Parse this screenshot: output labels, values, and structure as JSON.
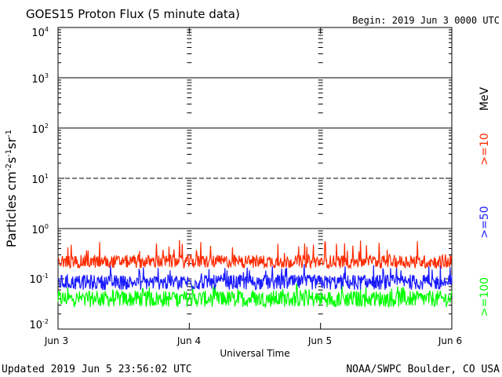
{
  "header": {
    "title": "GOES15 Proton Flux (5 minute data)",
    "begin": "Begin: 2019 Jun 3 0000 UTC"
  },
  "footer": {
    "updated": "Updated 2019 Jun  5 23:56:02 UTC",
    "source": "NOAA/SWPC Boulder, CO USA"
  },
  "colors": {
    "ge10": "#ff2a00",
    "ge50": "#1a1aff",
    "ge100": "#00ff00",
    "axis": "#000000"
  },
  "chart_data": {
    "type": "line",
    "title": "GOES15 Proton Flux (5 minute data)",
    "xlabel": "Universal Time",
    "ylabel": "Particles cm-2s-1sr-1",
    "yscale": "log",
    "ylim_exp": [
      -2,
      4
    ],
    "yticks": [
      {
        "base": "10",
        "exp": "-2"
      },
      {
        "base": "10",
        "exp": "-1"
      },
      {
        "base": "10",
        "exp": "0"
      },
      {
        "base": "10",
        "exp": "1"
      },
      {
        "base": "10",
        "exp": "2"
      },
      {
        "base": "10",
        "exp": "3"
      },
      {
        "base": "10",
        "exp": "4"
      }
    ],
    "xlim_days": [
      0,
      3
    ],
    "xticks": [
      "Jun 3",
      "Jun 4",
      "Jun 5",
      "Jun 6"
    ],
    "thresholds": [
      {
        "value": 10,
        "style": "dashed"
      },
      {
        "value": 1,
        "style": "solid"
      },
      {
        "value": 100,
        "style": "solid"
      },
      {
        "value": 1000,
        "style": "solid"
      }
    ],
    "energy_unit": "MeV",
    "series": [
      {
        "name": ">=10",
        "color": "#ff2a00",
        "approx_min": 0.15,
        "approx_mean": 0.22,
        "approx_max": 0.6
      },
      {
        "name": ">=50",
        "color": "#1a1aff",
        "approx_min": 0.055,
        "approx_mean": 0.085,
        "approx_max": 0.2
      },
      {
        "name": ">=100",
        "color": "#00ff00",
        "approx_min": 0.025,
        "approx_mean": 0.04,
        "approx_max": 0.08
      }
    ]
  }
}
